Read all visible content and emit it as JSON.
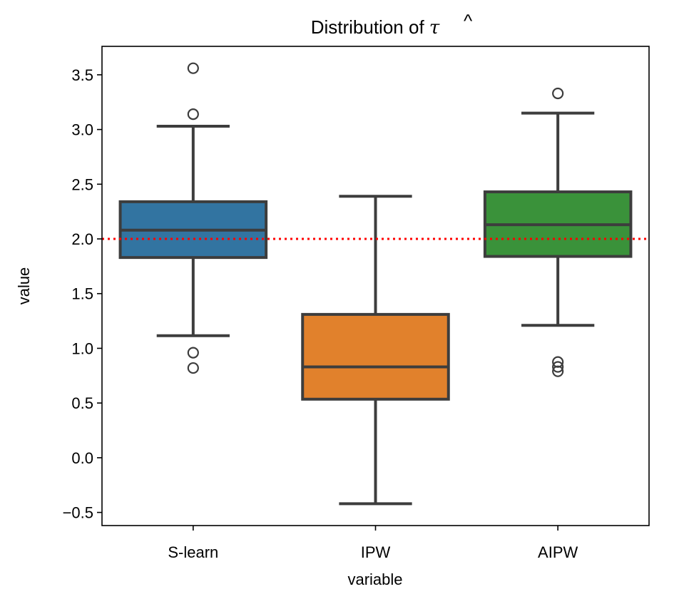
{
  "chart_data": {
    "type": "box",
    "title": "Distribution of τ̂",
    "title_parts": {
      "text": "Distribution of ",
      "symbol": "τ",
      "accent": "^"
    },
    "xlabel": "variable",
    "ylabel": "value",
    "ylim": [
      -0.62,
      3.76
    ],
    "yticks": [
      -0.5,
      0.0,
      0.5,
      1.0,
      1.5,
      2.0,
      2.5,
      3.0,
      3.5
    ],
    "ytick_labels": [
      "−0.5",
      "0.0",
      "0.5",
      "1.0",
      "1.5",
      "2.0",
      "2.5",
      "3.0",
      "3.5"
    ],
    "categories": [
      "S-learn",
      "IPW",
      "AIPW"
    ],
    "grid": false,
    "reference_line": {
      "y": 2.0,
      "color": "#ff0000",
      "style": "dotted"
    },
    "series": [
      {
        "name": "S-learn",
        "color": "#3274a1",
        "whisker_low": 1.115,
        "q1": 1.83,
        "median": 2.08,
        "q3": 2.34,
        "whisker_high": 3.03,
        "outliers": [
          3.56,
          3.14,
          0.96,
          0.82
        ]
      },
      {
        "name": "IPW",
        "color": "#e1812c",
        "whisker_low": -0.42,
        "q1": 0.535,
        "median": 0.83,
        "q3": 1.31,
        "whisker_high": 2.39,
        "outliers": []
      },
      {
        "name": "AIPW",
        "color": "#3a923a",
        "whisker_low": 1.21,
        "q1": 1.84,
        "median": 2.13,
        "q3": 2.43,
        "whisker_high": 3.15,
        "outliers": [
          3.33,
          0.875,
          0.83,
          0.79
        ]
      }
    ],
    "line_color": "#3d3d3d"
  }
}
